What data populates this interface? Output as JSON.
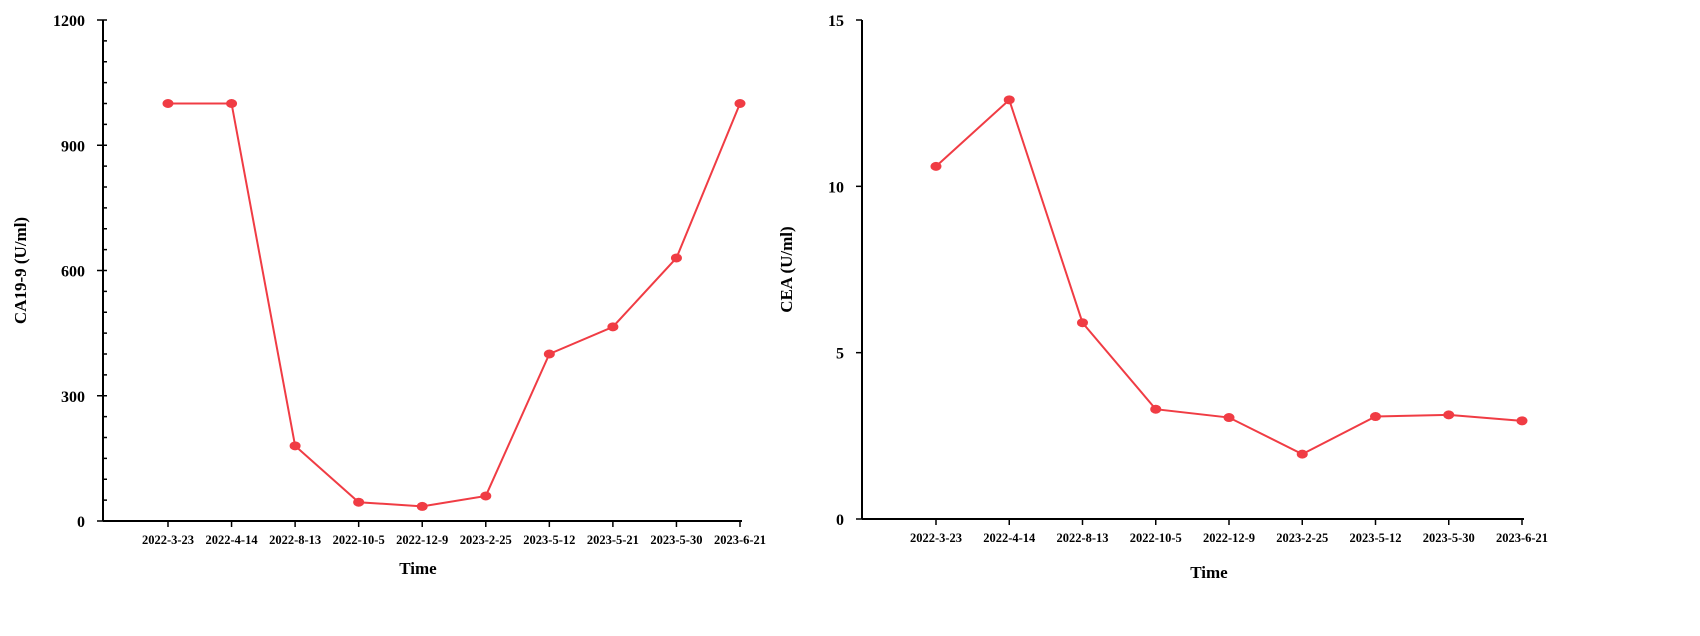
{
  "colors": {
    "series": "#f03c44",
    "axis": "#000000"
  },
  "chart_data": [
    {
      "type": "line",
      "title": "",
      "xlabel": "Time",
      "ylabel": "CA19-9 (U/ml)",
      "ylim": [
        0,
        1200
      ],
      "yticks": [
        "0",
        "300",
        "600",
        "900",
        "1200"
      ],
      "y_minor_step": 50,
      "grid": false,
      "legend": "none",
      "categories": [
        "2022-3-23",
        "2022-4-14",
        "2022-8-13",
        "2022-10-5",
        "2022-12-9",
        "2023-2-25",
        "2023-5-12",
        "2023-5-21",
        "2023-5-30",
        "2023-6-21"
      ],
      "series": [
        {
          "values": [
            1000,
            1000,
            180,
            45,
            35,
            60,
            400,
            465,
            630,
            1000
          ]
        }
      ]
    },
    {
      "type": "line",
      "title": "",
      "xlabel": "Time",
      "ylabel": "CEA (U/ml)",
      "ylim": [
        0,
        15
      ],
      "yticks": [
        "0",
        "5",
        "10",
        "15"
      ],
      "y_minor_step": 0,
      "grid": false,
      "legend": "none",
      "categories": [
        "2022-3-23",
        "2022-4-14",
        "2022-8-13",
        "2022-10-5",
        "2022-12-9",
        "2023-2-25",
        "2023-5-12",
        "2023-5-30",
        "2023-6-21"
      ],
      "series": [
        {
          "values": [
            10.6,
            12.6,
            5.9,
            3.3,
            3.05,
            1.95,
            3.08,
            3.13,
            2.95
          ]
        }
      ]
    }
  ]
}
